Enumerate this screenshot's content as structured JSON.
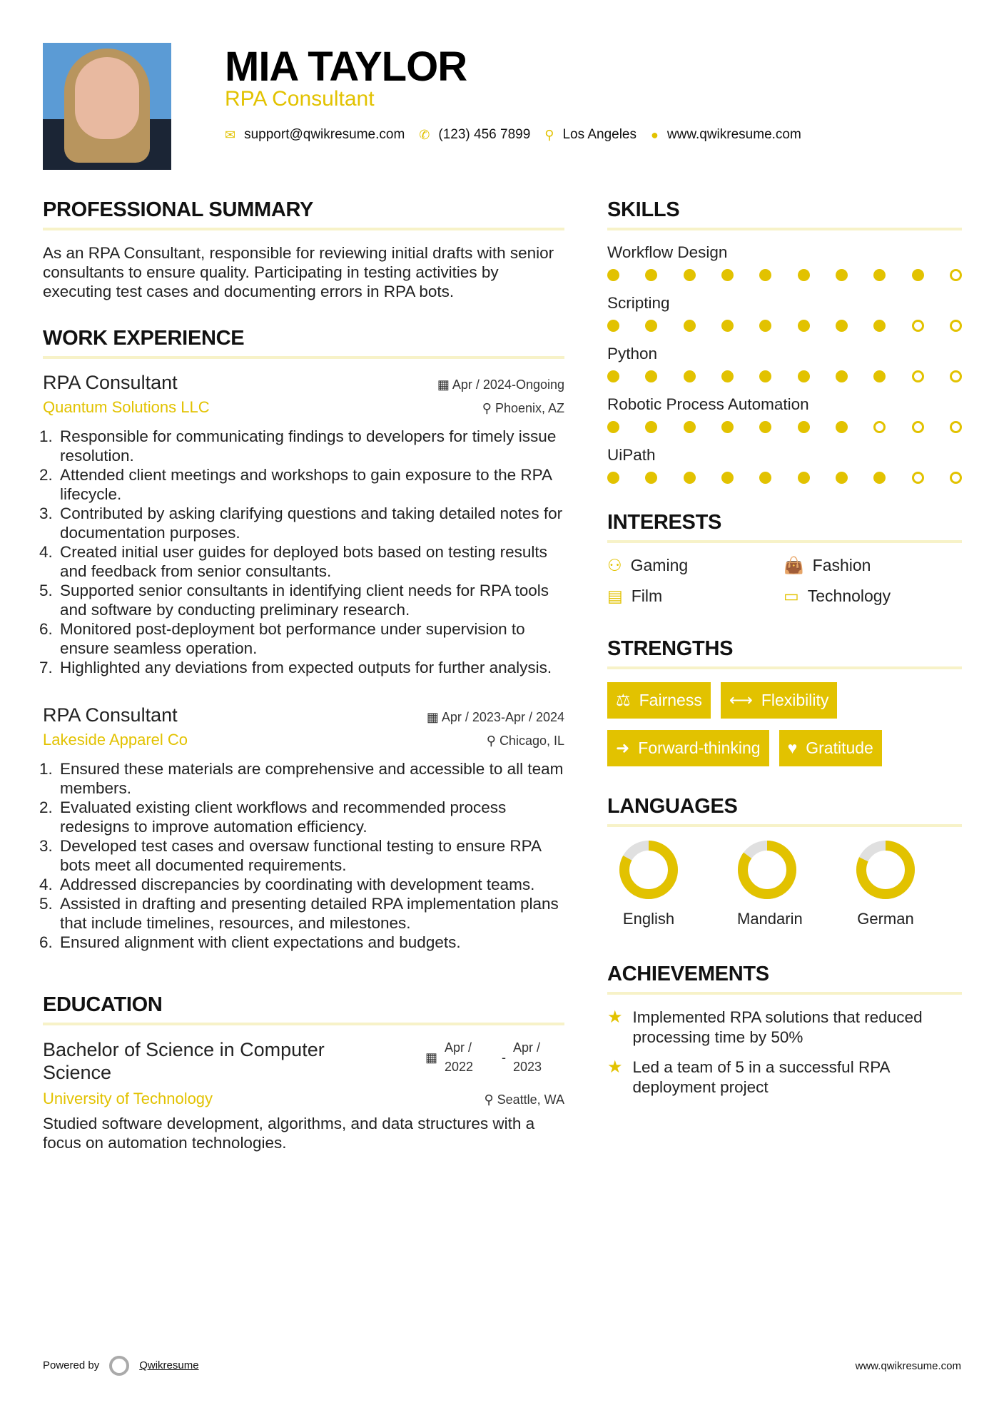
{
  "header": {
    "name": "MIA TAYLOR",
    "title": "RPA Consultant",
    "email": "support@qwikresume.com",
    "phone": "(123) 456 7899",
    "location": "Los Angeles",
    "website": "www.qwikresume.com"
  },
  "colors": {
    "accent": "#e2c200"
  },
  "summary": {
    "heading": "PROFESSIONAL SUMMARY",
    "text": "As an RPA Consultant, responsible for reviewing initial drafts with senior consultants to ensure quality. Participating in testing activities by executing test cases and documenting errors in RPA bots."
  },
  "work": {
    "heading": "WORK EXPERIENCE",
    "jobs": [
      {
        "title": "RPA Consultant",
        "dates": "Apr / 2024-Ongoing",
        "company": "Quantum Solutions LLC",
        "location": "Phoenix, AZ",
        "bullets": [
          "Responsible for communicating findings to developers for timely issue resolution.",
          "Attended client meetings and workshops to gain exposure to the RPA lifecycle.",
          "Contributed by asking clarifying questions and taking detailed notes for documentation purposes.",
          "Created initial user guides for deployed bots based on testing results and feedback from senior consultants.",
          "Supported senior consultants in identifying client needs for RPA tools and software by conducting preliminary research.",
          "Monitored post-deployment bot performance under supervision to ensure seamless operation.",
          "Highlighted any deviations from expected outputs for further analysis."
        ]
      },
      {
        "title": "RPA Consultant",
        "dates": "Apr / 2023-Apr / 2024",
        "company": "Lakeside Apparel Co",
        "location": "Chicago, IL",
        "bullets": [
          "Ensured these materials are comprehensive and accessible to all team members.",
          "Evaluated existing client workflows and recommended process redesigns to improve automation efficiency.",
          "Developed test cases and oversaw functional testing to ensure RPA bots meet all documented requirements.",
          "Addressed discrepancies by coordinating with development teams.",
          "Assisted in drafting and presenting detailed RPA implementation plans that include timelines, resources, and milestones.",
          "Ensured alignment with client expectations and budgets."
        ]
      }
    ]
  },
  "education": {
    "heading": "EDUCATION",
    "degree": "Bachelor of Science in Computer Science",
    "start": "Apr / 2022",
    "end": "Apr / 2023",
    "school": "University of Technology",
    "location": "Seattle, WA",
    "text": "Studied software development, algorithms, and data structures with a focus on automation technologies."
  },
  "skills": {
    "heading": "SKILLS",
    "items": [
      {
        "name": "Workflow Design",
        "level": 9,
        "max": 10
      },
      {
        "name": "Scripting",
        "level": 8,
        "max": 10
      },
      {
        "name": "Python",
        "level": 8,
        "max": 10
      },
      {
        "name": "Robotic Process Automation",
        "level": 7,
        "max": 10
      },
      {
        "name": "UiPath",
        "level": 8,
        "max": 10
      }
    ]
  },
  "interests": {
    "heading": "INTERESTS",
    "items": [
      {
        "label": "Gaming",
        "icon": "gamepad-icon"
      },
      {
        "label": "Fashion",
        "icon": "shopping-bag-icon"
      },
      {
        "label": "Film",
        "icon": "film-icon"
      },
      {
        "label": "Technology",
        "icon": "laptop-icon"
      }
    ]
  },
  "strengths": {
    "heading": "STRENGTHS",
    "items": [
      {
        "label": "Fairness",
        "icon": "balance-scale-icon"
      },
      {
        "label": "Flexibility",
        "icon": "arrows-horizontal-icon"
      },
      {
        "label": "Forward-thinking",
        "icon": "arrow-right-icon"
      },
      {
        "label": "Gratitude",
        "icon": "heart-icon"
      }
    ]
  },
  "languages": {
    "heading": "LANGUAGES",
    "items": [
      {
        "name": "English",
        "percent": 83
      },
      {
        "name": "Mandarin",
        "percent": 85
      },
      {
        "name": "German",
        "percent": 82
      }
    ]
  },
  "achievements": {
    "heading": "ACHIEVEMENTS",
    "items": [
      "Implemented RPA solutions that reduced processing time by 50%",
      "Led a team of 5 in a successful RPA deployment project"
    ]
  },
  "footer": {
    "powered": "Powered by",
    "brand": "Qwikresume",
    "site": "www.qwikresume.com"
  }
}
